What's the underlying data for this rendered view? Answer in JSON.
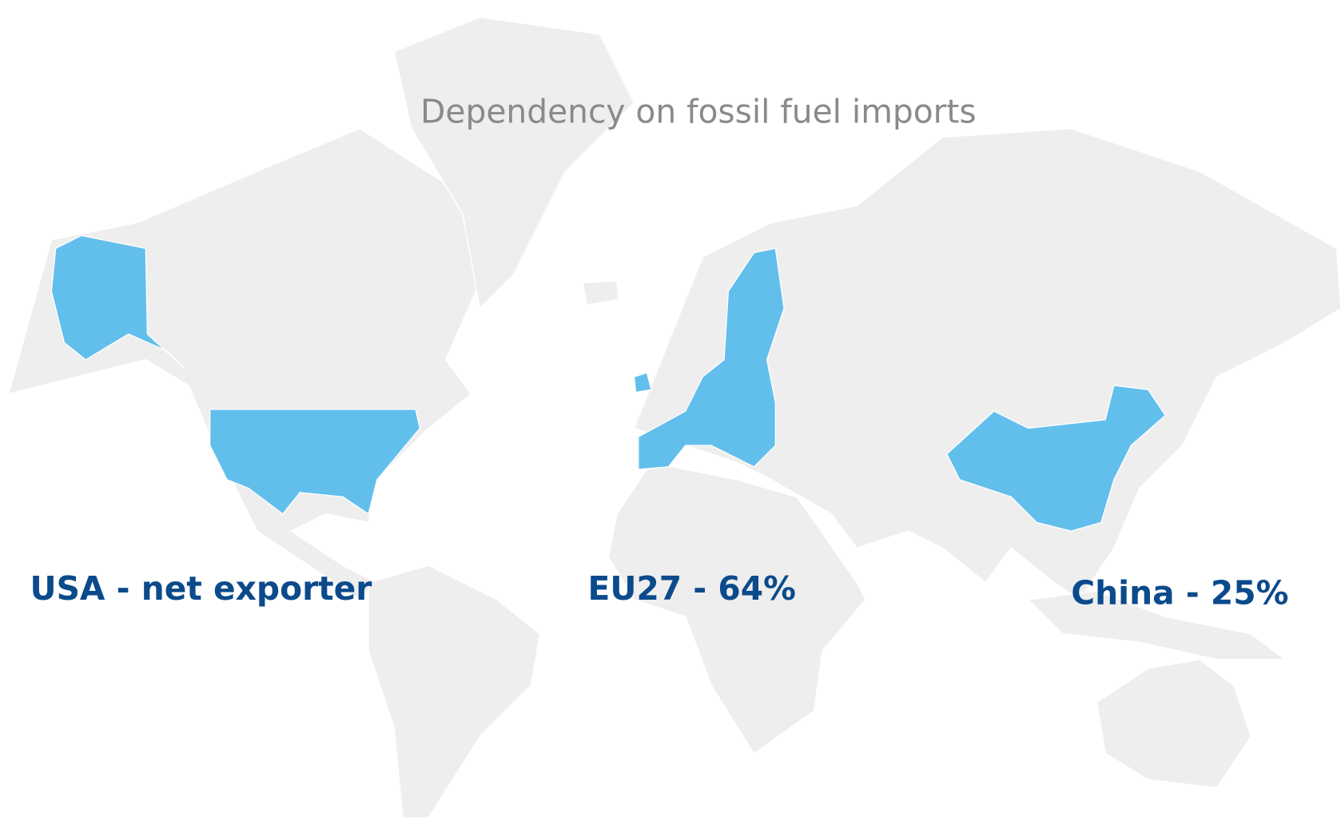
{
  "title": "Dependency on fossil fuel imports",
  "regions": [
    {
      "label": "USA - net exporter"
    },
    {
      "label": "EU27 - 64%"
    },
    {
      "label": "China - 25%"
    }
  ]
}
